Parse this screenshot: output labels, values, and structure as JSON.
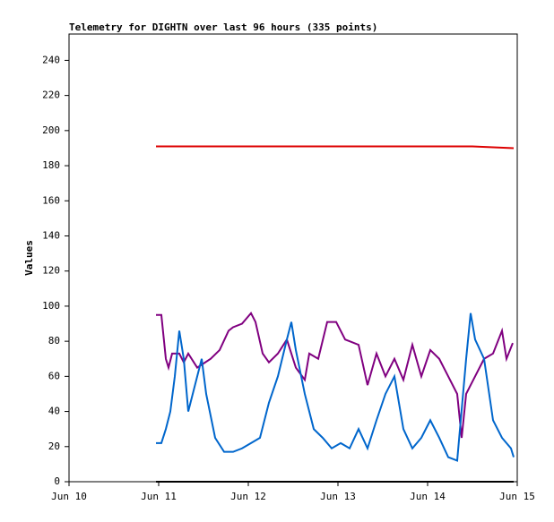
{
  "chart_data": {
    "type": "line",
    "title": "Telemetry for DIGHTN over last 96 hours (335 points)",
    "y_label": "Values",
    "xlim": [
      0,
      5
    ],
    "xticks": [
      {
        "value": 0,
        "label": "Jun 10"
      },
      {
        "value": 1,
        "label": "Jun 11"
      },
      {
        "value": 2,
        "label": "Jun 12"
      },
      {
        "value": 3,
        "label": "Jun 13"
      },
      {
        "value": 4,
        "label": "Jun 14"
      },
      {
        "value": 5,
        "label": "Jun 15"
      }
    ],
    "ylim": [
      0,
      255
    ],
    "yticks": [
      0,
      20,
      40,
      60,
      80,
      100,
      120,
      140,
      160,
      180,
      200,
      220,
      240
    ],
    "series": [
      {
        "color": "#dd0000",
        "x": [
          0.97,
          4.5,
          4.96
        ],
        "values": [
          191,
          191,
          190
        ]
      },
      {
        "color": "#800080",
        "x": [
          0.97,
          1.03,
          1.08,
          1.11,
          1.15,
          1.23,
          1.28,
          1.33,
          1.43,
          1.58,
          1.68,
          1.78,
          1.83,
          1.93,
          2.03,
          2.08,
          2.16,
          2.23,
          2.33,
          2.43,
          2.53,
          2.63,
          2.68,
          2.78,
          2.88,
          2.98,
          3.08,
          3.23,
          3.33,
          3.43,
          3.53,
          3.63,
          3.73,
          3.83,
          3.93,
          4.03,
          4.13,
          4.23,
          4.33,
          4.38,
          4.43,
          4.53,
          4.63,
          4.73,
          4.83,
          4.88,
          4.95
        ],
        "values": [
          95,
          95,
          70,
          65,
          73,
          73,
          68,
          73,
          65,
          70,
          75,
          86,
          88,
          90,
          96,
          91,
          73,
          68,
          73,
          81,
          65,
          58,
          73,
          70,
          91,
          91,
          81,
          78,
          55,
          73,
          60,
          70,
          58,
          78,
          60,
          75,
          70,
          60,
          50,
          25,
          50,
          60,
          70,
          73,
          86,
          70,
          79
        ]
      },
      {
        "color": "#0066cc",
        "x": [
          0.97,
          1.03,
          1.08,
          1.13,
          1.18,
          1.23,
          1.28,
          1.33,
          1.38,
          1.43,
          1.48,
          1.53,
          1.63,
          1.73,
          1.83,
          1.93,
          2.03,
          2.13,
          2.23,
          2.33,
          2.43,
          2.48,
          2.53,
          2.63,
          2.73,
          2.83,
          2.93,
          3.03,
          3.13,
          3.23,
          3.33,
          3.43,
          3.53,
          3.63,
          3.73,
          3.83,
          3.93,
          4.03,
          4.13,
          4.23,
          4.33,
          4.43,
          4.48,
          4.53,
          4.63,
          4.73,
          4.83,
          4.93,
          4.96
        ],
        "values": [
          22,
          22,
          30,
          40,
          60,
          86,
          70,
          40,
          50,
          60,
          70,
          50,
          25,
          17,
          17,
          19,
          22,
          25,
          45,
          60,
          81,
          91,
          75,
          50,
          30,
          25,
          19,
          22,
          19,
          30,
          19,
          35,
          50,
          60,
          30,
          19,
          25,
          35,
          25,
          14,
          12,
          70,
          96,
          81,
          70,
          35,
          25,
          19,
          14
        ]
      },
      {
        "color": "#000000",
        "x": [
          0.97,
          4.96
        ],
        "values": [
          0,
          0
        ]
      }
    ]
  }
}
